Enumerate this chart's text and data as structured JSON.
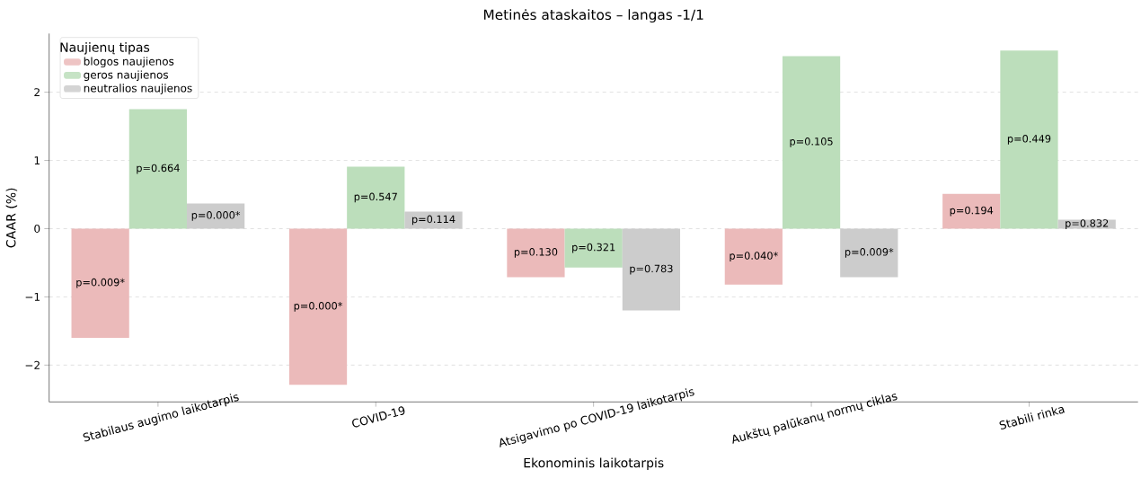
{
  "chart_data": {
    "type": "bar",
    "title": "Metinės ataskaitos – langas -1/1",
    "xlabel": "Ekonominis laikotarpis",
    "ylabel": "CAAR (%)",
    "legend_title": "Naujienų tipas",
    "categories": [
      "Stabilaus augimo laikotarpis",
      "COVID-19",
      "Atsigavimo po COVID-19 laikotarpis",
      "Aukštų palūkanų normų ciklas",
      "Stabili rinka"
    ],
    "series": [
      {
        "name": "blogos naujienos",
        "color": "#ebbaba",
        "values": [
          -1.6,
          -2.29,
          -0.71,
          -0.82,
          0.51
        ]
      },
      {
        "name": "geros naujienos",
        "color": "#bcdebb",
        "values": [
          1.75,
          0.91,
          -0.57,
          2.53,
          2.61
        ]
      },
      {
        "name": "neutralios naujienos",
        "color": "#cccccc",
        "values": [
          0.37,
          0.25,
          -1.2,
          -0.71,
          0.13
        ]
      }
    ],
    "annotations": [
      "p=0.009*",
      "p=0.000*",
      "p=0.130",
      "p=0.040*",
      "p=0.194",
      "p=0.664",
      "p=0.547",
      "p=0.321",
      "p=0.105",
      "p=0.449",
      "p=0.000*",
      "p=0.114",
      "p=0.783",
      "p=0.009*",
      "p=0.832"
    ],
    "ylim": [
      -2.54,
      2.86
    ],
    "yticks": [
      {
        "value": -2,
        "label": "−2"
      },
      {
        "value": -1,
        "label": "−1"
      },
      0,
      1,
      2
    ],
    "grid": "y",
    "legend": "top left"
  }
}
